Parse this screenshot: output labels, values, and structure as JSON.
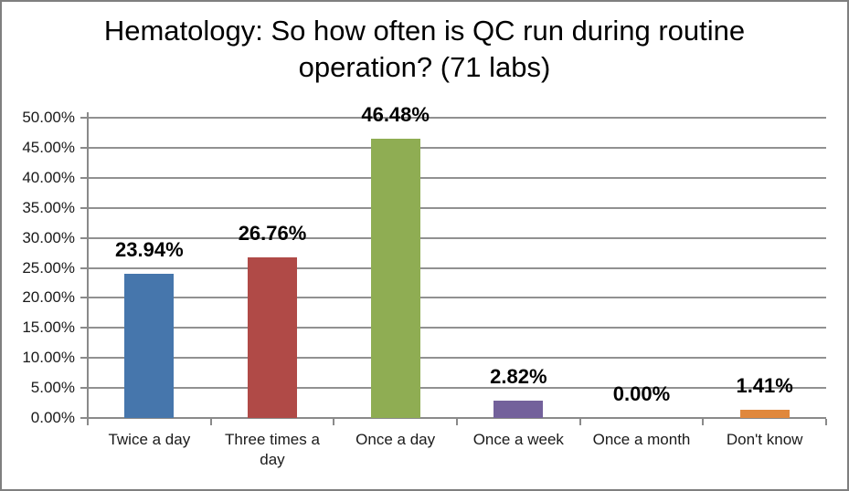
{
  "window": {
    "background": "#ffffff",
    "frame_border_color": "#7f7f7f"
  },
  "chart_data": {
    "type": "bar",
    "title": "Hematology: So how often is QC run during routine operation? (71 labs)",
    "categories": [
      "Twice a day",
      "Three times a day",
      "Once a day",
      "Once a week",
      "Once a month",
      "Don't know"
    ],
    "values": [
      23.94,
      26.76,
      46.48,
      2.82,
      0,
      1.41
    ],
    "value_labels": [
      "23.94%",
      "26.76%",
      "46.48%",
      "2.82%",
      "0.00%",
      "1.41%"
    ],
    "bar_colors": [
      "#4676ac",
      "#b04a47",
      "#8fad53",
      "#73619b",
      "#4bacc6",
      "#e0883d"
    ],
    "xlabel": "",
    "ylabel": "",
    "ylim": [
      0,
      50
    ],
    "yticks": [
      0,
      5,
      10,
      15,
      20,
      25,
      30,
      35,
      40,
      45,
      50
    ],
    "ytick_labels": [
      "0.00%",
      "5.00%",
      "10.00%",
      "15.00%",
      "20.00%",
      "25.00%",
      "30.00%",
      "35.00%",
      "40.00%",
      "45.00%",
      "50.00%"
    ],
    "grid": true,
    "legend": false,
    "gridline_color": "#919191",
    "axis_color": "#8a8a8a",
    "tick_text_color": "#1a1a1a",
    "value_label_color": "#000000"
  }
}
